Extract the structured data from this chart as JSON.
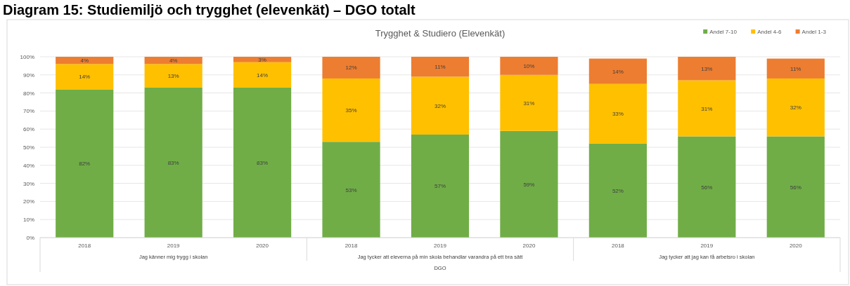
{
  "chart_data": {
    "type": "bar",
    "title": "Diagram 15: Studiemiljö och trygghet (elevenkät) – DGO totalt",
    "subtitle": "Trygghet & Studiero (Elevenkät)",
    "categories": [
      "2018",
      "2019",
      "2020",
      "2018",
      "2019",
      "2020",
      "2018",
      "2019",
      "2020"
    ],
    "annotations": [
      "Jag känner mig trygg i skolan",
      "Jag tycker att eleverna på min skola behandlar varandra på ett bra sätt",
      "Jag tycker att jag kan få arbetsro i skolan",
      "DGO"
    ],
    "stacked": true,
    "legend": "top right",
    "grid": "y",
    "ylim": [
      0,
      100
    ],
    "yticks": [
      {
        "value": 0,
        "label": "0%"
      },
      {
        "value": 10,
        "label": "10%"
      },
      {
        "value": 20,
        "label": "20%"
      },
      {
        "value": 30,
        "label": "30%"
      },
      {
        "value": 40,
        "label": "40%"
      },
      {
        "value": 50,
        "label": "50%"
      },
      {
        "value": 60,
        "label": "60%"
      },
      {
        "value": 70,
        "label": "70%"
      },
      {
        "value": 80,
        "label": "80%"
      },
      {
        "value": 90,
        "label": "90%"
      },
      {
        "value": 100,
        "label": "100%"
      }
    ],
    "series": [
      {
        "name": "Andel 7-10",
        "color": "#70ad47",
        "values": [
          82,
          83,
          83,
          53,
          57,
          59,
          52,
          56,
          56
        ],
        "value_labels": [
          "82%",
          "83%",
          "83%",
          "53%",
          "57%",
          "59%",
          "52%",
          "56%",
          "56%"
        ]
      },
      {
        "name": "Andel 4-6",
        "color": "#ffc000",
        "values": [
          14,
          13,
          14,
          35,
          32,
          31,
          33,
          31,
          32
        ],
        "value_labels": [
          "14%",
          "13%",
          "14%",
          "35%",
          "32%",
          "31%",
          "33%",
          "31%",
          "32%"
        ]
      },
      {
        "name": "Andel 1-3",
        "color": "#ed7d31",
        "values": [
          4,
          4,
          3,
          12,
          11,
          10,
          14,
          13,
          11
        ],
        "value_labels": [
          "4%",
          "4%",
          "3%",
          "12%",
          "11%",
          "10%",
          "14%",
          "13%",
          "11%"
        ]
      }
    ]
  }
}
